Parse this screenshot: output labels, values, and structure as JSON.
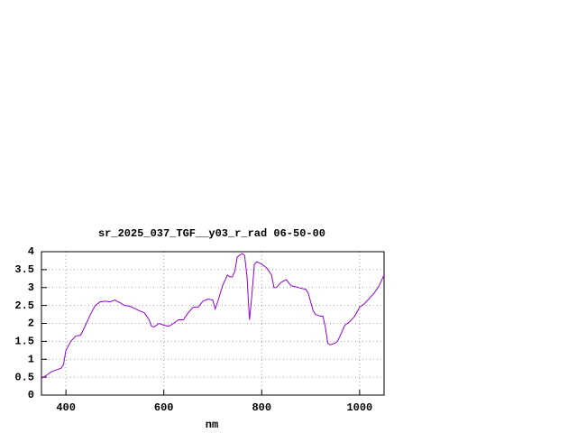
{
  "chart_data": {
    "type": "line",
    "title": "sr_2025_037_TGF__y03_r_rad 06-50-00",
    "x_label": "nm",
    "x": [
      350,
      360,
      370,
      380,
      390,
      395,
      400,
      410,
      420,
      430,
      440,
      450,
      460,
      470,
      480,
      490,
      500,
      510,
      520,
      530,
      540,
      550,
      560,
      570,
      575,
      580,
      590,
      600,
      610,
      620,
      630,
      640,
      650,
      660,
      670,
      680,
      690,
      700,
      705,
      710,
      720,
      730,
      735,
      740,
      745,
      750,
      760,
      765,
      770,
      775,
      780,
      785,
      790,
      800,
      810,
      820,
      825,
      830,
      840,
      850,
      860,
      870,
      880,
      890,
      895,
      900,
      905,
      910,
      920,
      925,
      930,
      935,
      940,
      950,
      955,
      960,
      970,
      980,
      990,
      1000,
      1010,
      1020,
      1030,
      1040,
      1050
    ],
    "series": [
      {
        "color": "#9400d3",
        "values": [
          0.47,
          0.55,
          0.65,
          0.7,
          0.75,
          0.85,
          1.25,
          1.5,
          1.65,
          1.67,
          1.95,
          2.25,
          2.5,
          2.6,
          2.62,
          2.6,
          2.65,
          2.58,
          2.5,
          2.48,
          2.42,
          2.35,
          2.3,
          2.1,
          1.92,
          1.9,
          2.0,
          1.95,
          1.92,
          2.0,
          2.1,
          2.1,
          2.3,
          2.45,
          2.45,
          2.62,
          2.68,
          2.65,
          2.4,
          2.6,
          3.05,
          3.35,
          3.3,
          3.3,
          3.45,
          3.85,
          3.95,
          3.9,
          3.3,
          2.1,
          2.8,
          3.65,
          3.72,
          3.65,
          3.55,
          3.35,
          3.0,
          3.0,
          3.15,
          3.22,
          3.05,
          3.02,
          2.98,
          2.95,
          2.85,
          2.6,
          2.35,
          2.25,
          2.2,
          2.2,
          1.9,
          1.45,
          1.4,
          1.45,
          1.5,
          1.65,
          1.95,
          2.05,
          2.2,
          2.45,
          2.55,
          2.7,
          2.85,
          3.05,
          3.35
        ]
      }
    ],
    "xlim": [
      350,
      1050
    ],
    "xticks": [
      400,
      600,
      800,
      1000
    ],
    "ylim": [
      0,
      4
    ],
    "yticks": [
      0,
      0.5,
      1,
      1.5,
      2,
      2.5,
      3,
      3.5,
      4
    ],
    "grid": true
  }
}
